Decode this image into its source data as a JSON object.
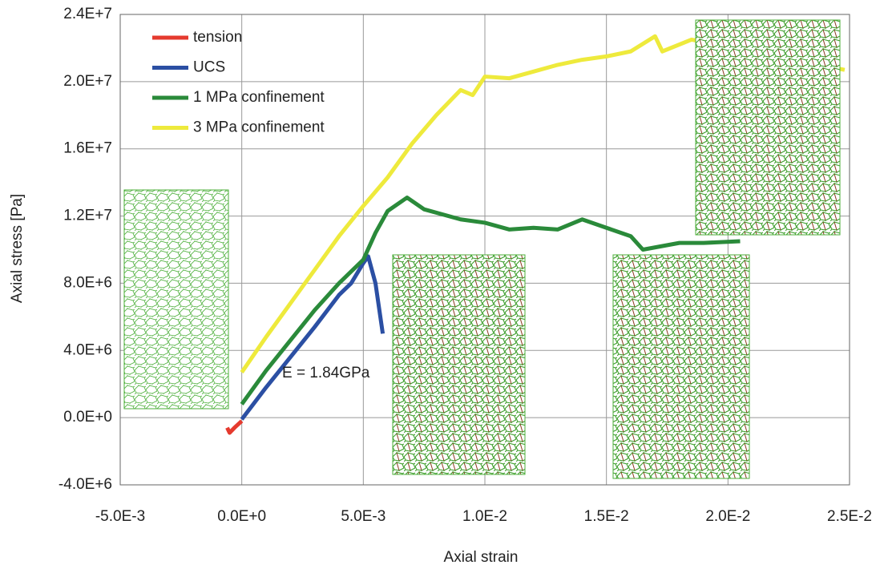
{
  "chart_data": {
    "type": "line",
    "x_label": "Axial strain",
    "y_label": "Axial stress [Pa]",
    "annotation": "E = 1.84GPa",
    "grid": true,
    "legend": "upper left",
    "xlim": [
      -0.005,
      0.025
    ],
    "ylim": [
      -4000000,
      24000000
    ],
    "xticks": [
      {
        "value": -0.005,
        "label": "-5.0E-3"
      },
      {
        "value": 0,
        "label": "0.0E+0"
      },
      {
        "value": 0.005,
        "label": "5.0E-3"
      },
      {
        "value": 0.01,
        "label": "1.0E-2"
      },
      {
        "value": 0.015,
        "label": "1.5E-2"
      },
      {
        "value": 0.02,
        "label": "2.0E-2"
      },
      {
        "value": 0.025,
        "label": "2.5E-2"
      }
    ],
    "yticks": [
      {
        "value": -4000000,
        "label": "-4.0E+6"
      },
      {
        "value": 0,
        "label": "0.0E+0"
      },
      {
        "value": 4000000,
        "label": "4.0E+6"
      },
      {
        "value": 8000000,
        "label": "8.0E+6"
      },
      {
        "value": 12000000,
        "label": "1.2E+7"
      },
      {
        "value": 16000000,
        "label": "1.6E+7"
      },
      {
        "value": 20000000,
        "label": "2.0E+7"
      },
      {
        "value": 24000000,
        "label": "2.4E+7"
      }
    ],
    "series": [
      {
        "name": "tension",
        "color": "#e53a2e",
        "x": [
          -0.0006,
          -0.0005,
          -0.0003,
          0
        ],
        "values": [
          -600000,
          -900000,
          -600000,
          -200000
        ]
      },
      {
        "name": "UCS",
        "color": "#2b4fa3",
        "x": [
          0,
          0.001,
          0.002,
          0.003,
          0.004,
          0.0045,
          0.005,
          0.0052,
          0.0055,
          0.0058
        ],
        "values": [
          -100000,
          1800000,
          3600000,
          5400000,
          7300000,
          8000000,
          9200000,
          9600000,
          8000000,
          5000000
        ]
      },
      {
        "name": "1 MPa confinement",
        "color": "#2a8a3a",
        "x": [
          0,
          0.001,
          0.002,
          0.003,
          0.004,
          0.005,
          0.0055,
          0.006,
          0.0068,
          0.0075,
          0.009,
          0.01,
          0.011,
          0.012,
          0.013,
          0.014,
          0.015,
          0.016,
          0.0165,
          0.018,
          0.019,
          0.0205
        ],
        "values": [
          800000,
          2800000,
          4600000,
          6400000,
          8000000,
          9400000,
          11000000,
          12300000,
          13100000,
          12400000,
          11800000,
          11600000,
          11200000,
          11300000,
          11200000,
          11800000,
          11300000,
          10800000,
          10000000,
          10400000,
          10400000,
          10500000
        ]
      },
      {
        "name": "3 MPa confinement",
        "color": "#eeea3c",
        "x": [
          0,
          0.001,
          0.002,
          0.003,
          0.004,
          0.005,
          0.006,
          0.007,
          0.008,
          0.009,
          0.0095,
          0.01,
          0.011,
          0.012,
          0.013,
          0.014,
          0.015,
          0.016,
          0.017,
          0.0173,
          0.0185,
          0.0248
        ],
        "values": [
          2700000,
          4800000,
          6800000,
          8800000,
          10800000,
          12600000,
          14300000,
          16300000,
          18000000,
          19500000,
          19200000,
          20300000,
          20200000,
          20600000,
          21000000,
          21300000,
          21500000,
          21800000,
          22700000,
          21800000,
          22500000,
          20700000
        ]
      }
    ]
  }
}
